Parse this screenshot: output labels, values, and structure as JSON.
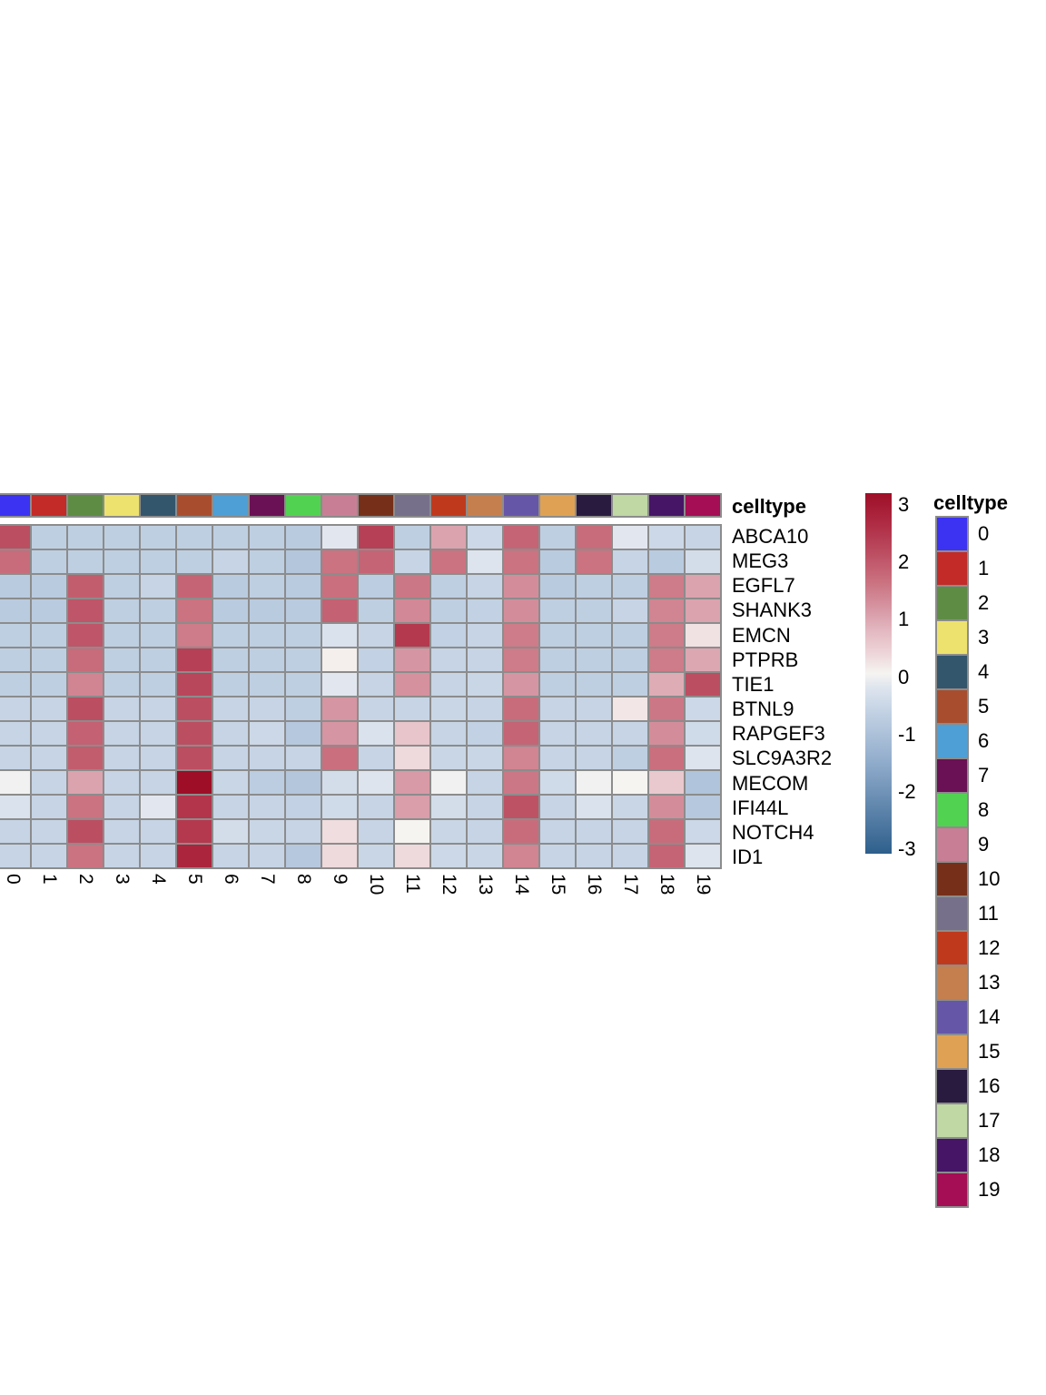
{
  "chart_data": {
    "type": "heatmap",
    "title": "",
    "columns": [
      "0",
      "1",
      "2",
      "3",
      "4",
      "5",
      "6",
      "7",
      "8",
      "9",
      "10",
      "11",
      "12",
      "13",
      "14",
      "15",
      "16",
      "17",
      "18",
      "19"
    ],
    "genes": [
      "ABCA10",
      "MEG3",
      "EGFL7",
      "SHANK3",
      "EMCN",
      "PTPRB",
      "TIE1",
      "BTNL9",
      "RAPGEF3",
      "SLC9A3R2",
      "MECOM",
      "IFI44L",
      "NOTCH4",
      "ID1"
    ],
    "values": [
      [
        2.0,
        -0.7,
        -0.7,
        -0.7,
        -0.7,
        -0.7,
        -0.7,
        -0.7,
        -0.8,
        -0.2,
        2.2,
        -0.7,
        0.95,
        -0.5,
        1.7,
        -0.7,
        1.6,
        -0.2,
        -0.5,
        -0.6
      ],
      [
        1.6,
        -0.7,
        -0.7,
        -0.7,
        -0.7,
        -0.7,
        -0.6,
        -0.7,
        -0.9,
        1.5,
        1.7,
        -0.6,
        1.5,
        -0.25,
        1.5,
        -0.8,
        1.5,
        -0.6,
        -0.8,
        -0.4
      ],
      [
        -0.8,
        -0.8,
        1.8,
        -0.7,
        -0.6,
        1.7,
        -0.8,
        -0.7,
        -0.8,
        1.55,
        -0.75,
        1.45,
        -0.7,
        -0.6,
        1.2,
        -0.8,
        -0.7,
        -0.7,
        1.4,
        0.95
      ],
      [
        -0.8,
        -0.8,
        1.9,
        -0.7,
        -0.7,
        1.5,
        -0.8,
        -0.8,
        -0.8,
        1.75,
        -0.7,
        1.25,
        -0.7,
        -0.65,
        1.2,
        -0.7,
        -0.7,
        -0.6,
        1.3,
        0.95
      ],
      [
        -0.7,
        -0.7,
        1.9,
        -0.7,
        -0.7,
        1.4,
        -0.7,
        -0.7,
        -0.7,
        -0.3,
        -0.6,
        2.3,
        -0.65,
        -0.6,
        1.4,
        -0.7,
        -0.7,
        -0.7,
        1.4,
        0.2
      ],
      [
        -0.7,
        -0.7,
        1.6,
        -0.7,
        -0.7,
        2.2,
        -0.7,
        -0.7,
        -0.7,
        0.05,
        -0.65,
        1.1,
        -0.6,
        -0.6,
        1.4,
        -0.7,
        -0.7,
        -0.7,
        1.4,
        0.9
      ],
      [
        -0.7,
        -0.7,
        1.3,
        -0.7,
        -0.7,
        2.1,
        -0.7,
        -0.7,
        -0.7,
        -0.2,
        -0.6,
        1.15,
        -0.6,
        -0.55,
        1.1,
        -0.7,
        -0.7,
        -0.7,
        0.85,
        2.0
      ],
      [
        -0.6,
        -0.6,
        2.0,
        -0.6,
        -0.6,
        2.0,
        -0.6,
        -0.6,
        -0.7,
        1.1,
        -0.6,
        -0.6,
        -0.55,
        -0.6,
        1.6,
        -0.6,
        -0.6,
        0.15,
        1.45,
        -0.5
      ],
      [
        -0.6,
        -0.6,
        1.75,
        -0.6,
        -0.6,
        2.0,
        -0.6,
        -0.5,
        -0.85,
        1.1,
        -0.3,
        0.55,
        -0.6,
        -0.65,
        1.7,
        -0.6,
        -0.6,
        -0.6,
        1.2,
        -0.45
      ],
      [
        -0.6,
        -0.6,
        1.8,
        -0.6,
        -0.6,
        2.0,
        -0.6,
        -0.6,
        -0.6,
        1.55,
        -0.6,
        0.3,
        -0.55,
        -0.55,
        1.3,
        -0.6,
        -0.6,
        -0.7,
        1.55,
        -0.25
      ],
      [
        -0.05,
        -0.6,
        0.95,
        -0.6,
        -0.6,
        3.0,
        -0.55,
        -0.75,
        -0.9,
        -0.4,
        -0.25,
        1.05,
        -0.05,
        -0.6,
        1.45,
        -0.45,
        -0.05,
        0.0,
        0.5,
        -0.95
      ],
      [
        -0.3,
        -0.6,
        1.5,
        -0.6,
        -0.2,
        2.35,
        -0.6,
        -0.6,
        -0.65,
        -0.45,
        -0.6,
        1.0,
        -0.4,
        -0.6,
        1.95,
        -0.6,
        -0.3,
        -0.55,
        1.2,
        -0.85
      ],
      [
        -0.6,
        -0.6,
        2.0,
        -0.6,
        -0.6,
        2.3,
        -0.4,
        -0.55,
        -0.6,
        0.25,
        -0.6,
        0.0,
        -0.55,
        -0.6,
        1.6,
        -0.6,
        -0.6,
        -0.6,
        1.6,
        -0.5
      ],
      [
        -0.6,
        -0.6,
        1.5,
        -0.6,
        -0.6,
        2.6,
        -0.6,
        -0.6,
        -0.85,
        0.3,
        -0.55,
        0.3,
        -0.5,
        -0.55,
        1.3,
        -0.6,
        -0.6,
        -0.6,
        1.7,
        -0.25
      ]
    ],
    "value_scale": {
      "min": -3,
      "max": 3,
      "colorbar_ticks": [
        "3",
        "2",
        "1",
        "0",
        "-1",
        "-2",
        "-3"
      ]
    },
    "colormap_stops": [
      [
        -3.0,
        "#2E5F8C"
      ],
      [
        -1.5,
        "#8FABCB"
      ],
      [
        -0.7,
        "#BFCFE2"
      ],
      [
        -0.25,
        "#DDE4EE"
      ],
      [
        0.0,
        "#F5F4F1"
      ],
      [
        0.35,
        "#EDD4D8"
      ],
      [
        0.7,
        "#E3B9C1"
      ],
      [
        1.1,
        "#D695A2"
      ],
      [
        1.5,
        "#CB7381"
      ],
      [
        2.0,
        "#BC4E62"
      ],
      [
        2.5,
        "#AE2B43"
      ],
      [
        3.0,
        "#9E0E27"
      ]
    ],
    "annotation": {
      "label": "celltype",
      "colors": [
        "#3C32F2",
        "#C22B28",
        "#5E8C44",
        "#EDE26D",
        "#33566C",
        "#A84E2E",
        "#4E9FD5",
        "#6A1155",
        "#52D251",
        "#C87F95",
        "#76301A",
        "#77708A",
        "#BF3A1D",
        "#C57F4E",
        "#6656A8",
        "#DFA254",
        "#291A40",
        "#BFD8A4",
        "#461566",
        "#A50D55"
      ]
    },
    "legend": {
      "title": "celltype",
      "entries": [
        "0",
        "1",
        "2",
        "3",
        "4",
        "5",
        "6",
        "7",
        "8",
        "9",
        "10",
        "11",
        "12",
        "13",
        "14",
        "15",
        "16",
        "17",
        "18",
        "19"
      ]
    },
    "grid_color": "#8C8C8C"
  }
}
